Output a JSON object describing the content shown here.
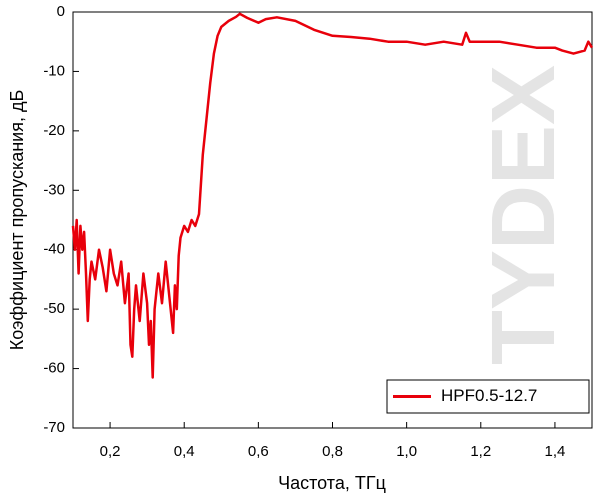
{
  "chart_data": {
    "type": "line",
    "xlabel": "Частота, ТГц",
    "ylabel": "Коэффициент пропускания, дБ",
    "watermark": "TYDEX",
    "legend": "lower right",
    "xlim": [
      0.1,
      1.5
    ],
    "ylim": [
      -70,
      0
    ],
    "xticks": [
      {
        "value": 0.2,
        "label": "0,2"
      },
      {
        "value": 0.4,
        "label": "0,4"
      },
      {
        "value": 0.6,
        "label": "0,6"
      },
      {
        "value": 0.8,
        "label": "0,8"
      },
      {
        "value": 1.0,
        "label": "1,0"
      },
      {
        "value": 1.2,
        "label": "1,2"
      },
      {
        "value": 1.4,
        "label": "1,4"
      }
    ],
    "yticks": [
      0,
      -10,
      -20,
      -30,
      -40,
      -50,
      -60,
      -70
    ],
    "x": [
      0.1,
      0.105,
      0.11,
      0.115,
      0.12,
      0.125,
      0.13,
      0.135,
      0.14,
      0.145,
      0.15,
      0.16,
      0.17,
      0.18,
      0.19,
      0.2,
      0.21,
      0.22,
      0.23,
      0.24,
      0.25,
      0.255,
      0.26,
      0.265,
      0.27,
      0.28,
      0.29,
      0.3,
      0.305,
      0.31,
      0.315,
      0.32,
      0.33,
      0.34,
      0.35,
      0.36,
      0.37,
      0.375,
      0.38,
      0.385,
      0.39,
      0.4,
      0.41,
      0.42,
      0.43,
      0.44,
      0.45,
      0.46,
      0.47,
      0.48,
      0.49,
      0.5,
      0.52,
      0.54,
      0.55,
      0.57,
      0.6,
      0.62,
      0.65,
      0.7,
      0.75,
      0.8,
      0.85,
      0.9,
      0.95,
      1.0,
      1.05,
      1.1,
      1.15,
      1.16,
      1.17,
      1.2,
      1.25,
      1.3,
      1.35,
      1.4,
      1.42,
      1.45,
      1.48,
      1.49,
      1.5
    ],
    "series": [
      {
        "name": "HPF0.5-12.7",
        "color": "#e8000b",
        "values": [
          -36,
          -40,
          -35,
          -44,
          -36,
          -40,
          -37,
          -44,
          -52,
          -45,
          -42,
          -45,
          -40,
          -43,
          -47,
          -40,
          -44,
          -46,
          -42,
          -49,
          -44,
          -56,
          -58,
          -50,
          -46,
          -52,
          -44,
          -49,
          -56,
          -52,
          -61.5,
          -50,
          -44,
          -49,
          -42,
          -48,
          -54,
          -46,
          -50,
          -41,
          -38,
          -36,
          -37,
          -35,
          -36,
          -34,
          -24,
          -18,
          -12,
          -7,
          -4,
          -2.5,
          -1.5,
          -0.8,
          -0.3,
          -1,
          -1.8,
          -1.2,
          -0.9,
          -1.5,
          -3,
          -4,
          -4.2,
          -4.5,
          -5,
          -5,
          -5.5,
          -5,
          -5.5,
          -3.5,
          -5,
          -5,
          -5,
          -5.5,
          -6,
          -6,
          -6.5,
          -7,
          -6.5,
          -5,
          -6
        ]
      }
    ]
  }
}
